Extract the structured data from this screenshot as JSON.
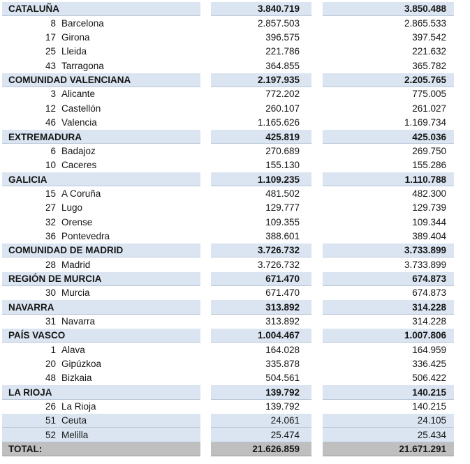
{
  "colors": {
    "highlight_row_bg": "#dbe5f1",
    "total_row_bg": "#bfbfbf",
    "text": "#151515"
  },
  "table": {
    "columns": [
      "label",
      "value_1",
      "value_2"
    ],
    "rows": [
      {
        "type": "region",
        "label": "CATALUÑA",
        "v1": "3.840.719",
        "v2": "3.850.488"
      },
      {
        "type": "province",
        "code": "8",
        "label": "Barcelona",
        "v1": "2.857.503",
        "v2": "2.865.533"
      },
      {
        "type": "province",
        "code": "17",
        "label": "Girona",
        "v1": "396.575",
        "v2": "397.542"
      },
      {
        "type": "province",
        "code": "25",
        "label": "Lleida",
        "v1": "221.786",
        "v2": "221.632"
      },
      {
        "type": "province",
        "code": "43",
        "label": "Tarragona",
        "v1": "364.855",
        "v2": "365.782"
      },
      {
        "type": "region",
        "label": "COMUNIDAD VALENCIANA",
        "v1": "2.197.935",
        "v2": "2.205.765"
      },
      {
        "type": "province",
        "code": "3",
        "label": "Alicante",
        "v1": "772.202",
        "v2": "775.005"
      },
      {
        "type": "province",
        "code": "12",
        "label": "Castellón",
        "v1": "260.107",
        "v2": "261.027"
      },
      {
        "type": "province",
        "code": "46",
        "label": "Valencia",
        "v1": "1.165.626",
        "v2": "1.169.734"
      },
      {
        "type": "region",
        "label": "EXTREMADURA",
        "v1": "425.819",
        "v2": "425.036"
      },
      {
        "type": "province",
        "code": "6",
        "label": "Badajoz",
        "v1": "270.689",
        "v2": "269.750"
      },
      {
        "type": "province",
        "code": "10",
        "label": "Caceres",
        "v1": "155.130",
        "v2": "155.286"
      },
      {
        "type": "region",
        "label": "GALICIA",
        "v1": "1.109.235",
        "v2": "1.110.788"
      },
      {
        "type": "province",
        "code": "15",
        "label": "A Coruña",
        "v1": "481.502",
        "v2": "482.300"
      },
      {
        "type": "province",
        "code": "27",
        "label": "Lugo",
        "v1": "129.777",
        "v2": "129.739"
      },
      {
        "type": "province",
        "code": "32",
        "label": "Orense",
        "v1": "109.355",
        "v2": "109.344"
      },
      {
        "type": "province",
        "code": "36",
        "label": "Pontevedra",
        "v1": "388.601",
        "v2": "389.404"
      },
      {
        "type": "region",
        "label": "COMUNIDAD DE MADRID",
        "v1": "3.726.732",
        "v2": "3.733.899"
      },
      {
        "type": "province",
        "code": "28",
        "label": "Madrid",
        "v1": "3.726.732",
        "v2": "3.733.899"
      },
      {
        "type": "region",
        "label": "REGIÓN DE MURCIA",
        "v1": "671.470",
        "v2": "674.873"
      },
      {
        "type": "province",
        "code": "30",
        "label": "Murcia",
        "v1": "671.470",
        "v2": "674.873"
      },
      {
        "type": "region",
        "label": "NAVARRA",
        "v1": "313.892",
        "v2": "314.228"
      },
      {
        "type": "province",
        "code": "31",
        "label": "Navarra",
        "v1": "313.892",
        "v2": "314.228"
      },
      {
        "type": "region",
        "label": "PAÍS VASCO",
        "v1": "1.004.467",
        "v2": "1.007.806"
      },
      {
        "type": "province",
        "code": "1",
        "label": "Alava",
        "v1": "164.028",
        "v2": "164.959"
      },
      {
        "type": "province",
        "code": "20",
        "label": "Gipúzkoa",
        "v1": "335.878",
        "v2": "336.425"
      },
      {
        "type": "province",
        "code": "48",
        "label": "Bizkaia",
        "v1": "504.561",
        "v2": "506.422"
      },
      {
        "type": "region",
        "label": "LA RIOJA",
        "v1": "139.792",
        "v2": "140.215"
      },
      {
        "type": "province",
        "code": "26",
        "label": "La Rioja",
        "v1": "139.792",
        "v2": "140.215"
      },
      {
        "type": "province_highlight",
        "code": "51",
        "label": "Ceuta",
        "v1": "24.061",
        "v2": "24.105"
      },
      {
        "type": "province_highlight",
        "code": "52",
        "label": "Melilla",
        "v1": "25.474",
        "v2": "25.434"
      },
      {
        "type": "total",
        "label": "TOTAL:",
        "v1": "21.626.859",
        "v2": "21.671.291"
      }
    ]
  }
}
